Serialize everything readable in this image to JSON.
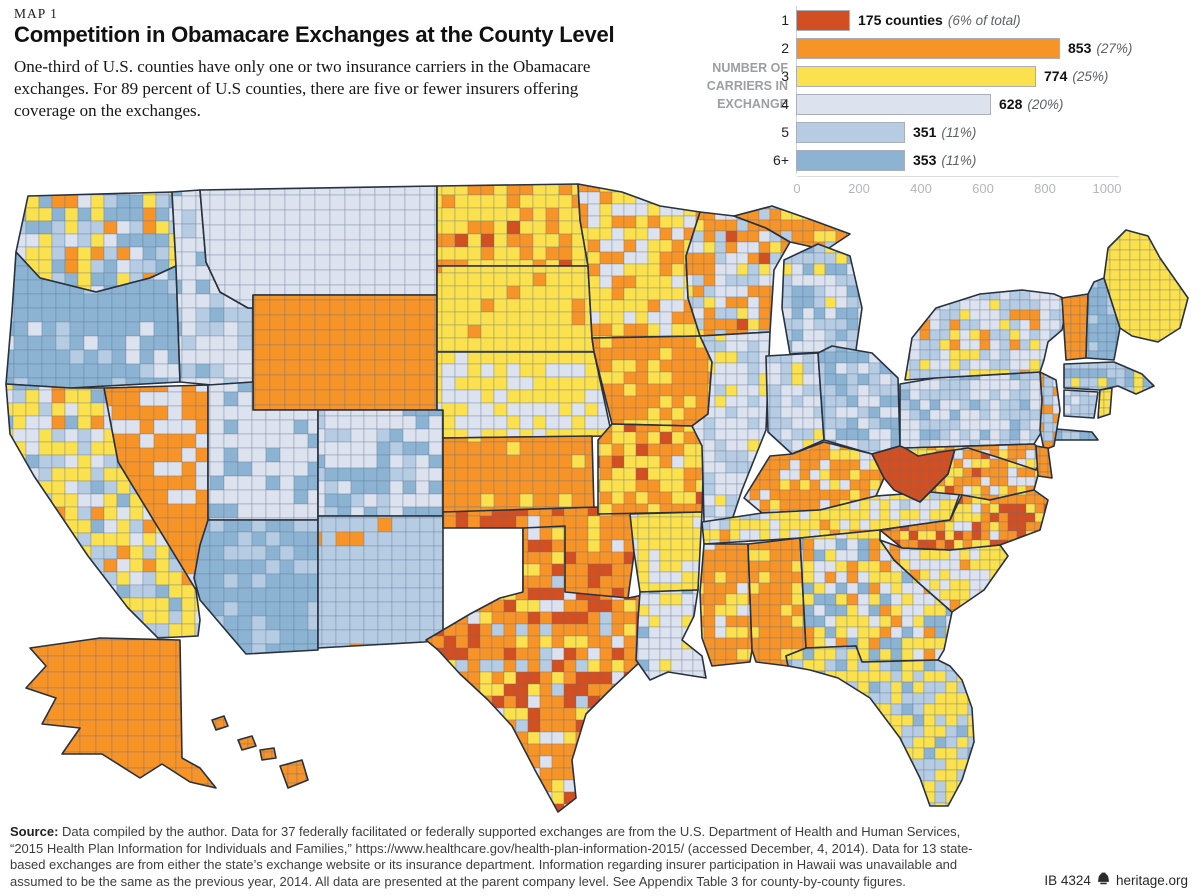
{
  "header": {
    "kicker": "MAP 1",
    "title": "Competition in Obamacare Exchanges at the County Level",
    "intro": "One-third of U.S. counties have only one or two insurance carriers in the Obamacare exchanges. For 89 percent of U.S counties, there are five or fewer insurers offering coverage on the exchanges."
  },
  "legend": {
    "axis_title": "NUMBER OF\nCARRIERS IN\nEXCHANGE",
    "rows": [
      {
        "carriers": "1",
        "count": 175,
        "count_label": "175 counties",
        "pct_label": "(6% of total)"
      },
      {
        "carriers": "2",
        "count": 853,
        "count_label": "853",
        "pct_label": "(27%)"
      },
      {
        "carriers": "3",
        "count": 774,
        "count_label": "774",
        "pct_label": "(25%)"
      },
      {
        "carriers": "4",
        "count": 628,
        "count_label": "628",
        "pct_label": "(20%)"
      },
      {
        "carriers": "5",
        "count": 351,
        "count_label": "351",
        "pct_label": "(11%)"
      },
      {
        "carriers": "6+",
        "count": 353,
        "count_label": "353",
        "pct_label": "(11%)"
      }
    ],
    "axis_ticks": [
      0,
      200,
      400,
      600,
      800,
      1000
    ]
  },
  "chart_data": {
    "type": "bar",
    "title": "Number of carriers in exchange — county counts",
    "categories": [
      "1",
      "2",
      "3",
      "4",
      "5",
      "6+"
    ],
    "values": [
      175,
      853,
      774,
      628,
      351,
      353
    ],
    "labels": [
      "175 counties (6% of total)",
      "853 (27%)",
      "774 (25%)",
      "628 (20%)",
      "351 (11%)",
      "353 (11%)"
    ],
    "xlabel": "counties",
    "ylabel": "carriers in exchange",
    "xlim": [
      0,
      1000
    ],
    "legend_position": "top-right",
    "grid": false
  },
  "map": {
    "colors": {
      "1": "#d24f21",
      "2": "#f79428",
      "3": "#fbe14d",
      "4": "#dde2ef",
      "5": "#b6cce3",
      "6": "#8db3d2"
    },
    "county_line": "rgba(92,112,142,0.45)",
    "state_line": "#27313f",
    "states": [
      {
        "name": "washington",
        "cell": 13,
        "poly": "28,196 172,192 176,266 150,278 96,292 40,278 16,252",
        "weights": {
          "3": 0.28,
          "6": 0.25,
          "5": 0.2,
          "4": 0.15,
          "2": 0.12
        }
      },
      {
        "name": "oregon",
        "cell": 14,
        "poly": "6,384 12,312 16,252 40,278 96,292 150,278 176,266 180,382 70,388",
        "weights": {
          "6": 0.82,
          "5": 0.1,
          "4": 0.08
        }
      },
      {
        "name": "idaho",
        "cell": 14,
        "poly": "172,192 200,190 206,262 220,292 248,308 253,308 253,382 212,385 180,382 176,266",
        "weights": {
          "4": 0.55,
          "5": 0.35,
          "6": 0.1
        }
      },
      {
        "name": "montana",
        "cell": 15,
        "poly": "200,190 437,186 437,295 253,295 253,308 248,308 220,292 206,262",
        "weights": {
          "4": 1
        }
      },
      {
        "name": "wyoming",
        "cell": 15,
        "poly": "253,295 437,295 437,410 253,410",
        "weights": {
          "2": 1
        }
      },
      {
        "name": "nevada",
        "cell": 14,
        "poly": "104,388 208,385 208,520 196,590 118,462",
        "weights": {
          "2": 0.72,
          "4": 0.28
        }
      },
      {
        "name": "california",
        "cell": 13,
        "poly": "6,384 70,388 104,388 118,462 196,590 200,620 198,636 158,638 128,608 88,556 34,476 10,434",
        "weights": {
          "3": 0.48,
          "4": 0.18,
          "5": 0.18,
          "6": 0.1,
          "2": 0.06
        }
      },
      {
        "name": "utah",
        "cell": 14,
        "poly": "208,385 253,382 253,410 318,410 318,520 208,520",
        "weights": {
          "4": 0.88,
          "6": 0.12
        }
      },
      {
        "name": "colorado",
        "cell": 13,
        "poly": "318,410 443,410 443,516 318,516",
        "weights": {
          "4": 0.55,
          "6": 0.3,
          "5": 0.15
        }
      },
      {
        "name": "arizona",
        "cell": 14,
        "poly": "208,520 318,520 318,650 246,654 200,600 194,578 200,545",
        "weights": {
          "6": 0.7,
          "5": 0.3
        }
      },
      {
        "name": "new-mexico",
        "cell": 14,
        "poly": "318,516 443,516 443,640 424,642 318,648",
        "weights": {
          "5": 0.93,
          "2": 0.07
        }
      },
      {
        "name": "north-dakota",
        "cell": 13,
        "poly": "437,186 578,184 580,220 588,266 437,266",
        "weights": {
          "3": 0.68,
          "2": 0.27,
          "1": 0.05
        }
      },
      {
        "name": "south-dakota",
        "cell": 13,
        "poly": "437,266 588,266 592,338 594,352 437,352",
        "weights": {
          "3": 0.93,
          "2": 0.07
        }
      },
      {
        "name": "nebraska",
        "cell": 13,
        "poly": "437,352 594,352 612,436 443,438 443,410 437,410",
        "weights": {
          "3": 0.55,
          "4": 0.45
        }
      },
      {
        "name": "kansas",
        "cell": 13,
        "poly": "443,438 592,436 594,510 443,512",
        "weights": {
          "2": 0.88,
          "3": 0.12
        }
      },
      {
        "name": "oklahoma",
        "cell": 12,
        "poly": "443,512 630,506 634,554 628,598 560,608 523,592 523,528 443,528",
        "weights": {
          "2": 0.62,
          "1": 0.24,
          "3": 0.08,
          "4": 0.06
        }
      },
      {
        "name": "texas",
        "cell": 12,
        "poly": "523,528 565,526 565,592 628,598 648,594 652,630 640,662 612,688 586,714 572,760 576,798 558,812 536,772 512,726 488,700 460,674 438,650 426,640 470,614 500,598 523,592",
        "weights": {
          "2": 0.4,
          "1": 0.26,
          "3": 0.2,
          "4": 0.09,
          "5": 0.05
        }
      },
      {
        "name": "minnesota",
        "cell": 12,
        "poly": "578,184 622,192 660,206 700,212 686,256 688,298 700,336 592,338 588,266 580,220",
        "weights": {
          "3": 0.48,
          "2": 0.27,
          "4": 0.25
        }
      },
      {
        "name": "iowa",
        "cell": 12,
        "poly": "592,338 700,336 712,362 708,414 692,426 612,424 594,352",
        "weights": {
          "2": 0.78,
          "3": 0.22
        }
      },
      {
        "name": "missouri",
        "cell": 12,
        "poly": "612,424 692,426 704,446 702,512 598,514 598,440",
        "weights": {
          "2": 0.45,
          "3": 0.45,
          "1": 0.05,
          "4": 0.05
        }
      },
      {
        "name": "arkansas",
        "cell": 11,
        "poly": "630,514 702,512 698,590 640,592 634,552",
        "weights": {
          "3": 0.88,
          "4": 0.12
        }
      },
      {
        "name": "louisiana",
        "cell": 11,
        "poly": "640,592 698,590 694,616 682,640 702,656 706,678 668,672 650,680 636,660 638,620",
        "weights": {
          "4": 0.8,
          "3": 0.12,
          "6": 0.08
        }
      },
      {
        "name": "wisconsin",
        "cell": 11,
        "poly": "686,256 700,212 734,216 766,228 790,242 774,270 770,332 700,336 688,298",
        "weights": {
          "2": 0.38,
          "5": 0.28,
          "4": 0.22,
          "3": 0.09,
          "1": 0.03
        }
      },
      {
        "name": "illinois",
        "cell": 11,
        "poly": "700,336 770,332 766,430 742,490 724,544 704,522 702,446 692,426 708,414 712,362",
        "weights": {
          "4": 0.55,
          "5": 0.32,
          "3": 0.13
        }
      },
      {
        "name": "michigan-upper-peninsula",
        "cell": 11,
        "poly": "734,216 772,206 812,220 850,234 826,250 790,242 766,228",
        "weights": {
          "2": 0.75,
          "3": 0.15,
          "5": 0.1
        }
      },
      {
        "name": "michigan",
        "cell": 11,
        "poly": "784,260 818,244 850,256 862,308 856,350 790,354 782,308",
        "weights": {
          "5": 0.45,
          "6": 0.3,
          "4": 0.17,
          "3": 0.08
        }
      },
      {
        "name": "indiana",
        "cell": 11,
        "poly": "766,356 818,353 824,440 792,454 768,432",
        "weights": {
          "5": 0.45,
          "4": 0.42,
          "3": 0.13
        }
      },
      {
        "name": "ohio",
        "cell": 11,
        "poly": "818,353 832,346 872,353 898,378 900,446 872,454 824,440",
        "weights": {
          "5": 0.42,
          "6": 0.36,
          "4": 0.22
        }
      },
      {
        "name": "kentucky",
        "cell": 10,
        "poly": "744,498 770,456 792,454 824,442 872,454 884,478 876,496 820,510 762,513",
        "weights": {
          "2": 0.6,
          "3": 0.22,
          "4": 0.18
        }
      },
      {
        "name": "tennessee",
        "cell": 10,
        "poly": "702,522 762,513 820,510 876,496 930,492 962,488 950,520 880,530 800,538 704,544",
        "weights": {
          "3": 0.48,
          "4": 0.33,
          "5": 0.12,
          "2": 0.07
        }
      },
      {
        "name": "mississippi",
        "cell": 11,
        "poly": "704,544 748,544 752,650 750,662 712,666 702,638 700,592",
        "weights": {
          "2": 0.68,
          "3": 0.2,
          "4": 0.12
        }
      },
      {
        "name": "alabama",
        "cell": 11,
        "poly": "748,544 800,538 806,648 786,656 788,666 756,662 752,650",
        "weights": {
          "2": 0.78,
          "3": 0.22
        }
      },
      {
        "name": "georgia",
        "cell": 11,
        "poly": "800,538 880,530 880,540 894,560 920,584 952,612 944,650 938,660 862,662 856,646 806,648",
        "weights": {
          "3": 0.34,
          "4": 0.3,
          "6": 0.22,
          "2": 0.14
        }
      },
      {
        "name": "florida",
        "cell": 11,
        "poly": "788,666 786,656 806,648 856,646 862,662 938,660 950,666 962,680 972,708 974,742 962,780 948,806 930,806 920,778 900,738 870,698 838,678 810,670",
        "weights": {
          "3": 0.58,
          "5": 0.28,
          "6": 0.14
        }
      },
      {
        "name": "south-carolina",
        "cell": 10,
        "poly": "880,540 902,548 950,550 1000,545 1008,556 984,590 952,612 920,584 894,560",
        "weights": {
          "4": 0.5,
          "3": 0.35,
          "2": 0.15
        }
      },
      {
        "name": "virginia",
        "cell": 9,
        "poly": "920,502 948,474 958,438 976,442 1010,452 1042,460 1034,490 990,500 962,495 930,492",
        "weights": {
          "2": 0.38,
          "3": 0.38,
          "4": 0.16,
          "1": 0.08
        }
      },
      {
        "name": "north-carolina",
        "cell": 9,
        "poly": "880,530 950,520 962,495 990,500 1034,490 1048,500 1040,530 1000,545 950,550 902,548",
        "weights": {
          "2": 0.45,
          "1": 0.3,
          "3": 0.2,
          "4": 0.05
        }
      },
      {
        "name": "west-virginia",
        "cell": 10,
        "poly": "884,478 872,454 900,446 900,420 916,402 934,414 958,438 948,474 920,502 894,490",
        "weights": {
          "1": 1
        }
      },
      {
        "name": "pennsylvania",
        "cell": 10,
        "poly": "900,384 935,378 1040,372 1044,428 1034,444 905,448 900,446",
        "weights": {
          "4": 0.5,
          "5": 0.38,
          "6": 0.12
        }
      },
      {
        "name": "new-york",
        "cell": 10,
        "poly": "905,380 912,338 936,308 980,294 1022,290 1054,294 1068,300 1062,330 1048,342 1044,360 1040,372 935,378",
        "weights": {
          "4": 0.4,
          "5": 0.33,
          "3": 0.15,
          "2": 0.12
        }
      },
      {
        "name": "long-island",
        "cell": 9,
        "poly": "1044,428 1092,432 1098,440 1048,440",
        "weights": {
          "5": 0.7,
          "6": 0.3
        }
      },
      {
        "name": "new-jersey",
        "cell": 9,
        "poly": "1040,372 1056,380 1060,410 1054,446 1044,450 1040,430 1042,400",
        "weights": {
          "5": 0.55,
          "2": 0.25,
          "4": 0.2
        }
      },
      {
        "name": "maryland",
        "cell": 9,
        "poly": "905,448 1034,444 1044,452 1036,470 1000,458 968,448 940,452 918,456",
        "weights": {
          "3": 0.45,
          "2": 0.3,
          "4": 0.25
        }
      },
      {
        "name": "delaware",
        "cell": 8,
        "poly": "1036,446 1048,448 1052,478 1038,476",
        "weights": {
          "2": 1
        }
      },
      {
        "name": "vermont",
        "cell": 9,
        "poly": "1062,298 1088,294 1086,358 1066,360 1064,330",
        "weights": {
          "2": 1
        }
      },
      {
        "name": "new-hampshire",
        "cell": 9,
        "poly": "1088,294 1094,282 1104,278 1120,328 1114,360 1086,358",
        "weights": {
          "6": 0.78,
          "5": 0.22
        }
      },
      {
        "name": "maine",
        "cell": 10,
        "poly": "1104,278 1108,248 1126,230 1148,236 1160,258 1188,298 1180,328 1158,342 1132,336 1120,328",
        "weights": {
          "3": 1
        }
      },
      {
        "name": "massachusetts",
        "cell": 9,
        "poly": "1064,364 1114,362 1142,374 1154,386 1136,394 1118,386 1100,390 1064,388",
        "weights": {
          "5": 0.5,
          "6": 0.38,
          "3": 0.12
        }
      },
      {
        "name": "connecticut",
        "cell": 9,
        "poly": "1064,390 1098,392 1094,418 1064,416",
        "weights": {
          "5": 0.6,
          "4": 0.4
        }
      },
      {
        "name": "rhode-island",
        "cell": 8,
        "poly": "1100,390 1112,388 1110,414 1098,418",
        "weights": {
          "3": 0.9,
          "5": 0.1
        }
      },
      {
        "name": "alaska",
        "cell": 16,
        "poly": "30,648 100,638 180,640 182,758 200,768 216,788 190,782 162,764 140,778 102,754 62,754 80,728 42,724 56,698 26,688 46,666",
        "weights": {
          "2": 1
        }
      },
      {
        "name": "hawaii-kauai",
        "cell": 8,
        "poly": "212,720 224,716 228,726 216,730",
        "weights": {
          "2": 1
        }
      },
      {
        "name": "hawaii-oahu",
        "cell": 8,
        "poly": "238,740 252,736 256,746 242,750",
        "weights": {
          "2": 1
        }
      },
      {
        "name": "hawaii-maui",
        "cell": 8,
        "poly": "260,750 274,748 276,758 262,760",
        "weights": {
          "2": 1
        }
      },
      {
        "name": "hawaii-big-island",
        "cell": 9,
        "poly": "280,766 302,760 308,780 288,788",
        "weights": {
          "2": 1
        }
      }
    ]
  },
  "source": {
    "label": "Source:",
    "text": " Data compiled by the author. Data for 37 federally facilitated or federally supported exchanges are from the U.S. Department of Health and Human Services, “2015 Health Plan Information for Individuals and Families,” https://www.healthcare.gov/health-plan-information-2015/ (accessed December, 4, 2014). Data for 13 state-based exchanges are from either the state’s exchange website or its insurance department. Information regarding insurer participation in Hawaii was unavailable and assumed to be the same as the previous year, 2014. All data are presented at the parent company level. See Appendix Table 3 for county-by-county figures."
  },
  "footer": {
    "report_id": "IB 4324",
    "site": "heritage.org"
  }
}
